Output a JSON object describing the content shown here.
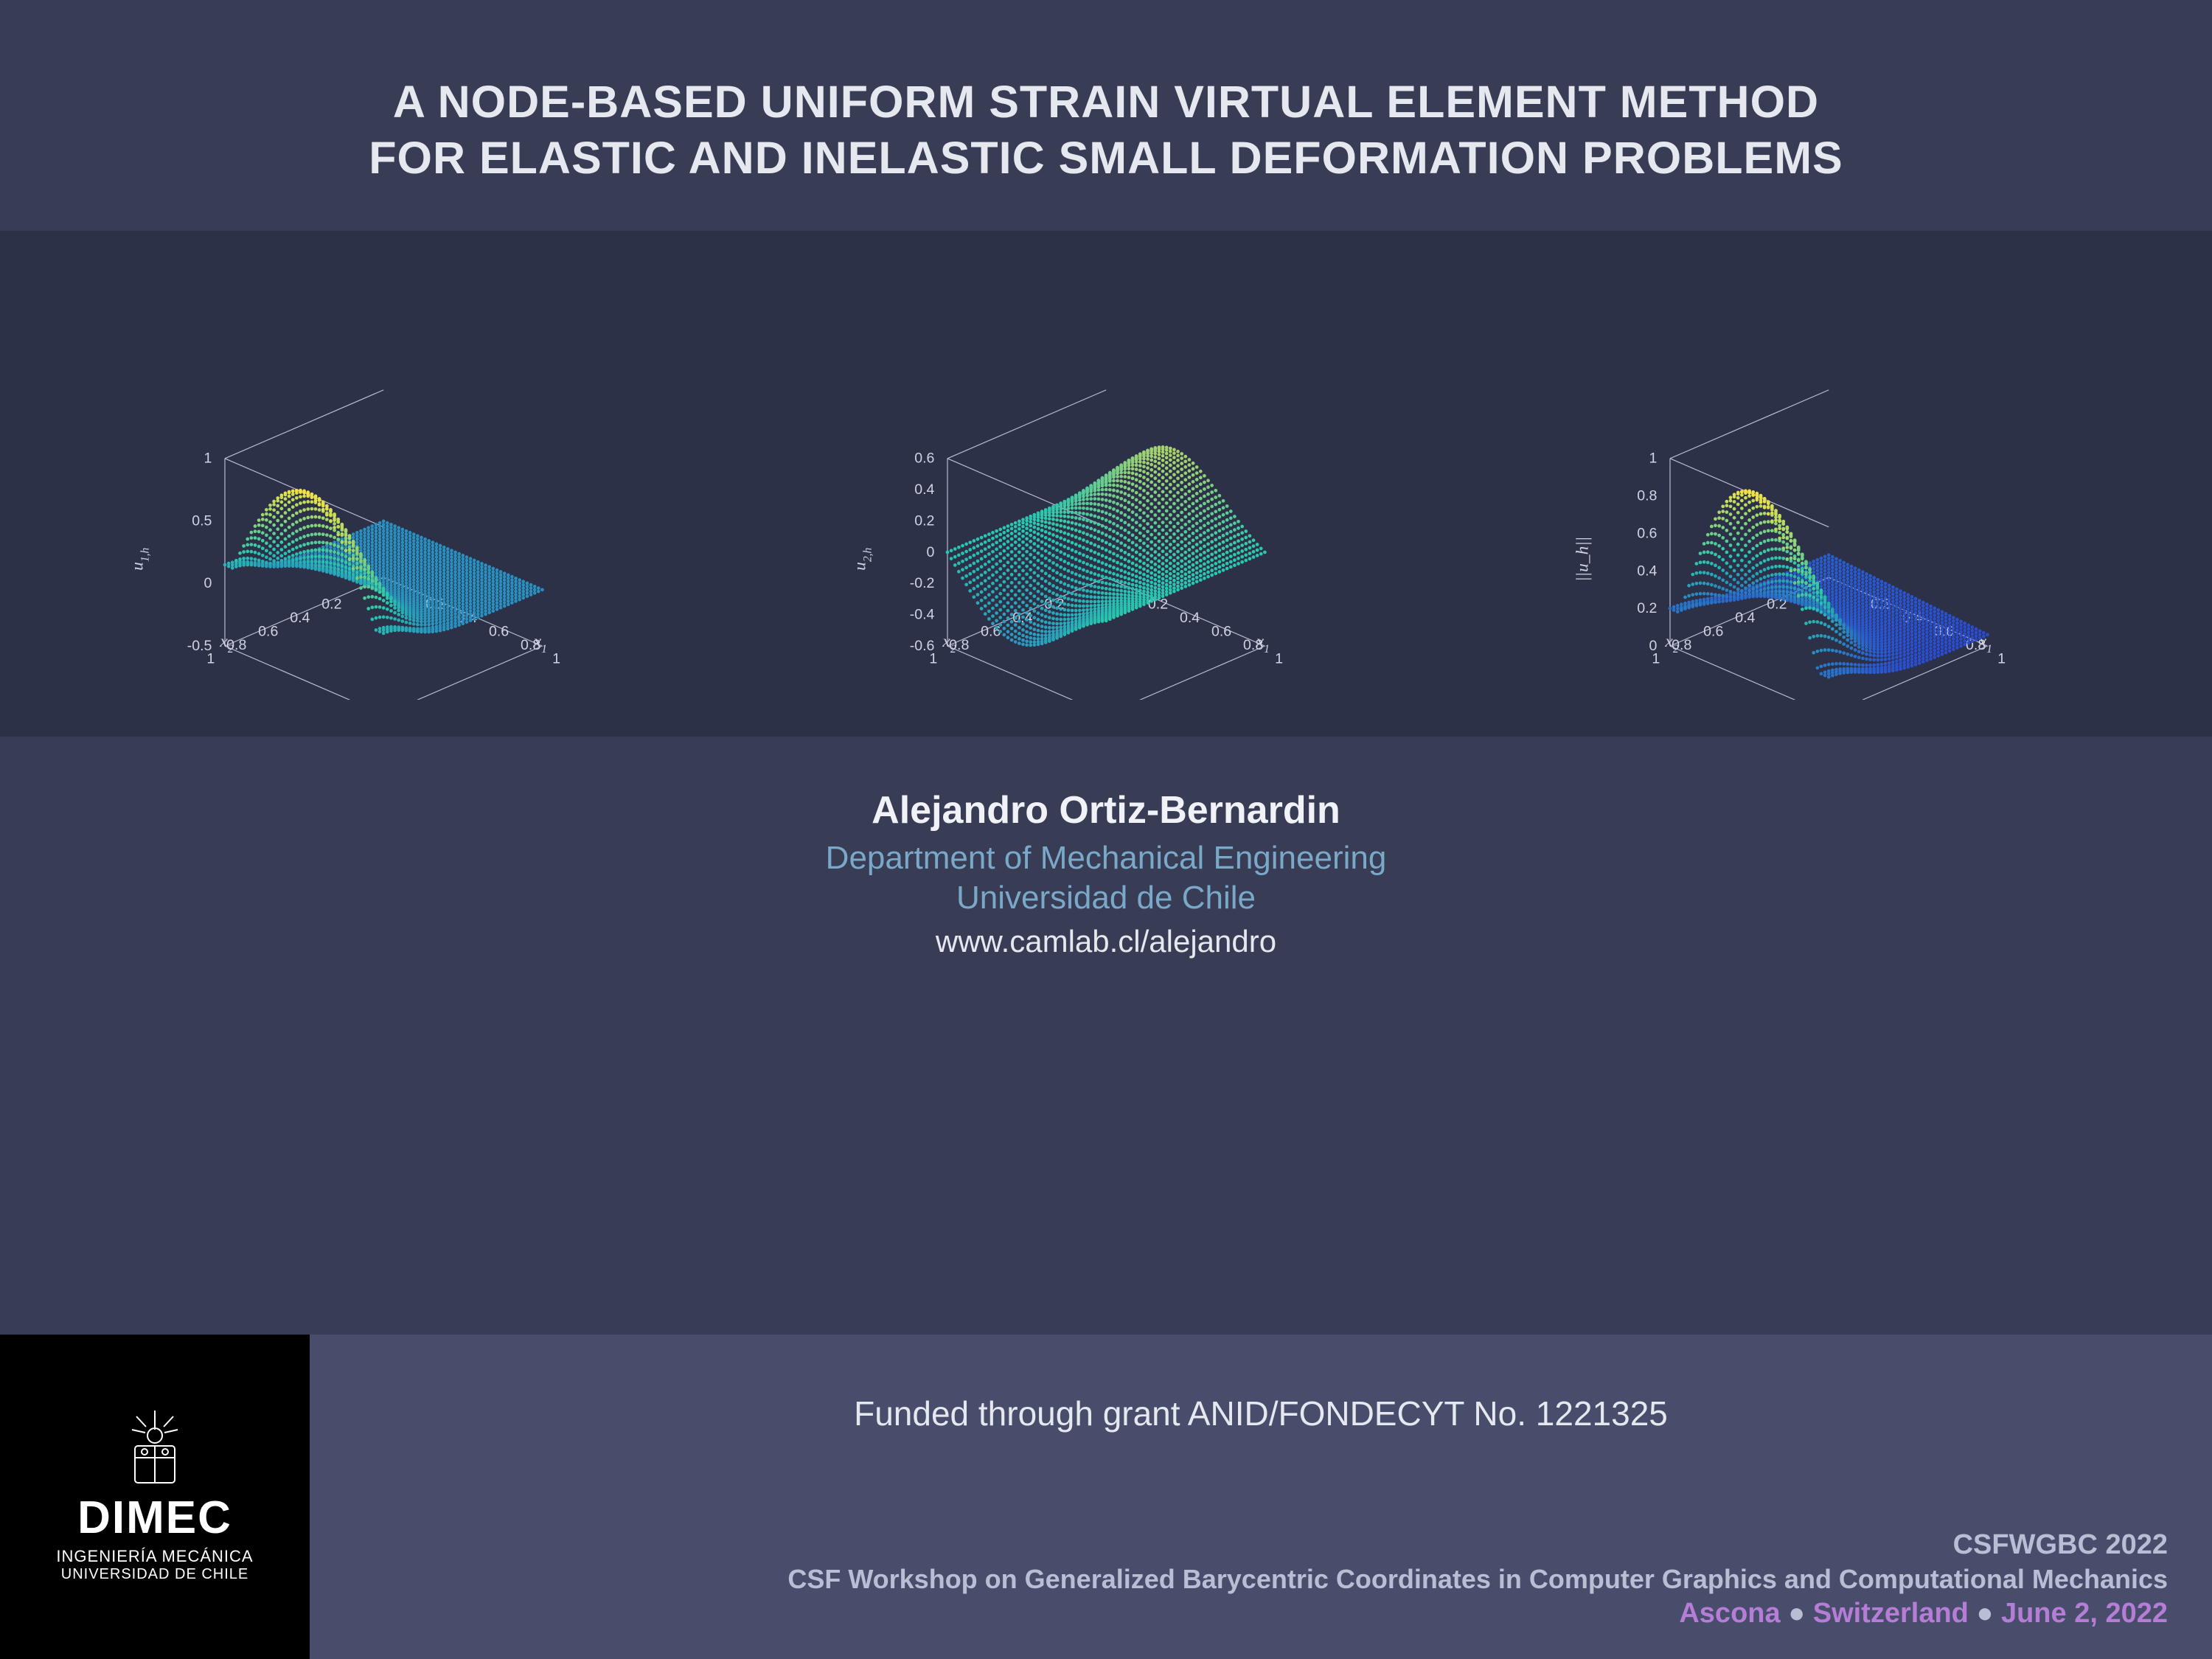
{
  "title": {
    "line1": "A NODE-BASED UNIFORM STRAIN VIRTUAL ELEMENT METHOD",
    "line2": "FOR ELASTIC AND INELASTIC SMALL DEFORMATION PROBLEMS"
  },
  "charts_band": {
    "background_color": "#2c3148"
  },
  "charts": [
    {
      "type": "scatter3d",
      "zlabel": "u_{1,h}",
      "x1label": "x_1",
      "x2label": "x_2",
      "z_ticks": [
        "-0.5",
        "0",
        "0.5",
        "1"
      ],
      "x1_ticks": [
        "0.2",
        "0.4",
        "0.6",
        "0.8",
        "1"
      ],
      "x2_ticks": [
        "0.2",
        "0.4",
        "0.6",
        "0.8",
        "1"
      ],
      "colormap_top": "#f5e342",
      "colormap_mid": "#28c7b0",
      "colormap_bot": "#2b3bd6",
      "background_color": "#2c3148",
      "tick_color": "#cfd3e2",
      "axis_color": "#b9bed4",
      "zlim": [
        -0.5,
        1.0
      ],
      "x1lim": [
        0,
        1
      ],
      "x2lim": [
        0,
        1
      ],
      "surface_shape": "ridge-high-left-flat-right"
    },
    {
      "type": "scatter3d",
      "zlabel": "u_{2,h}",
      "x1label": "x_1",
      "x2label": "x_2",
      "z_ticks": [
        "-0.6",
        "-0.4",
        "-0.2",
        "0",
        "0.2",
        "0.4",
        "0.6"
      ],
      "x1_ticks": [
        "0.2",
        "0.4",
        "0.6",
        "0.8",
        "1"
      ],
      "x2_ticks": [
        "0.2",
        "0.4",
        "0.6",
        "0.8",
        "1"
      ],
      "colormap_top": "#e7d84e",
      "colormap_mid": "#28c7b0",
      "colormap_bot": "#2e7fc7",
      "background_color": "#2c3148",
      "tick_color": "#cfd3e2",
      "axis_color": "#b9bed4",
      "zlim": [
        -0.6,
        0.6
      ],
      "x1lim": [
        0,
        1
      ],
      "x2lim": [
        0,
        1
      ],
      "surface_shape": "saddle-low-amplitude"
    },
    {
      "type": "scatter3d",
      "zlabel": "||u_h||",
      "x1label": "x_1",
      "x2label": "x_2",
      "z_ticks": [
        "0",
        "0.2",
        "0.4",
        "0.6",
        "0.8",
        "1"
      ],
      "x1_ticks": [
        "0.2",
        "0.4",
        "0.6",
        "0.8",
        "1"
      ],
      "x2_ticks": [
        "0.2",
        "0.4",
        "0.6",
        "0.8",
        "1"
      ],
      "colormap_top": "#f5e342",
      "colormap_mid": "#28c7b0",
      "colormap_bot": "#2b3bd6",
      "background_color": "#2c3148",
      "tick_color": "#cfd3e2",
      "axis_color": "#b9bed4",
      "zlim": [
        0,
        1.0
      ],
      "x1lim": [
        0,
        1
      ],
      "x2lim": [
        0,
        1
      ],
      "surface_shape": "ridge-high-left-decay-right"
    }
  ],
  "author": {
    "name": "Alejandro Ortiz-Bernardin",
    "dept": "Department of Mechanical Engineering",
    "univ": "Universidad de Chile",
    "url": "www.camlab.cl/alejandro"
  },
  "logo": {
    "word": "DIMEC",
    "sub1": "INGENIERÍA MECÁNICA",
    "sub2": "UNIVERSIDAD DE CHILE"
  },
  "funding": "Funded through grant ANID/FONDECYT No. 1221325",
  "conference": {
    "short": "CSFWGBC 2022",
    "long": "CSF Workshop on Generalized Barycentric Coordinates in Computer Graphics and Computational Mechanics",
    "city": "Ascona",
    "country": "Switzerland",
    "date": "June 2, 2022"
  },
  "colors": {
    "page_bg": "#383d55",
    "footer_bg": "#484d6b",
    "logo_bg": "#000000",
    "accent_text": "#7aa8c8",
    "conf_purple": "#b57dd6",
    "conf_grey": "#b9bed4"
  }
}
